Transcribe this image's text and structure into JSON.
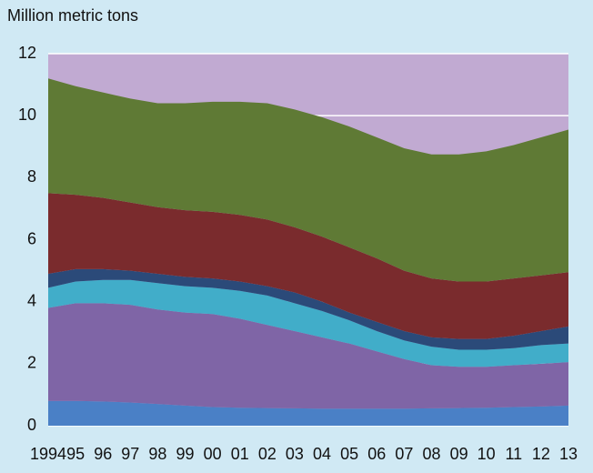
{
  "chart_data": {
    "type": "stacked-area",
    "y_label": "Million metric tons",
    "categories": [
      "1994",
      "95",
      "96",
      "97",
      "98",
      "99",
      "00",
      "01",
      "02",
      "03",
      "04",
      "05",
      "06",
      "07",
      "08",
      "09",
      "10",
      "11",
      "12",
      "13"
    ],
    "series": [
      {
        "color": "#4a80c6",
        "values": [
          0.8,
          0.8,
          0.78,
          0.75,
          0.7,
          0.65,
          0.6,
          0.58,
          0.57,
          0.56,
          0.55,
          0.55,
          0.55,
          0.55,
          0.56,
          0.57,
          0.58,
          0.6,
          0.62,
          0.65
        ]
      },
      {
        "color": "#7f65a6",
        "values": [
          3.0,
          3.15,
          3.17,
          3.15,
          3.05,
          3.0,
          3.0,
          2.87,
          2.68,
          2.49,
          2.3,
          2.1,
          1.85,
          1.6,
          1.39,
          1.33,
          1.32,
          1.35,
          1.38,
          1.4
        ]
      },
      {
        "color": "#41adc9",
        "values": [
          0.65,
          0.7,
          0.75,
          0.8,
          0.85,
          0.85,
          0.85,
          0.9,
          0.95,
          0.9,
          0.85,
          0.75,
          0.65,
          0.6,
          0.6,
          0.55,
          0.55,
          0.55,
          0.6,
          0.6
        ]
      },
      {
        "color": "#2b4a79",
        "values": [
          0.45,
          0.4,
          0.35,
          0.3,
          0.3,
          0.3,
          0.3,
          0.3,
          0.3,
          0.35,
          0.3,
          0.25,
          0.3,
          0.3,
          0.3,
          0.35,
          0.35,
          0.4,
          0.45,
          0.55
        ]
      },
      {
        "color": "#7a2b2d",
        "values": [
          2.6,
          2.4,
          2.3,
          2.2,
          2.15,
          2.15,
          2.15,
          2.15,
          2.15,
          2.1,
          2.1,
          2.1,
          2.05,
          1.95,
          1.9,
          1.85,
          1.85,
          1.85,
          1.8,
          1.75
        ]
      },
      {
        "color": "#5f7a35",
        "values": [
          3.7,
          3.5,
          3.4,
          3.35,
          3.35,
          3.45,
          3.55,
          3.65,
          3.75,
          3.8,
          3.85,
          3.9,
          3.9,
          3.95,
          4.0,
          4.1,
          4.2,
          4.3,
          4.45,
          4.6
        ]
      }
    ],
    "plot_background": "#c1aad2",
    "ylim": [
      0,
      12
    ],
    "yticks": [
      0,
      2,
      4,
      6,
      8,
      10,
      12
    ],
    "grid": true
  }
}
